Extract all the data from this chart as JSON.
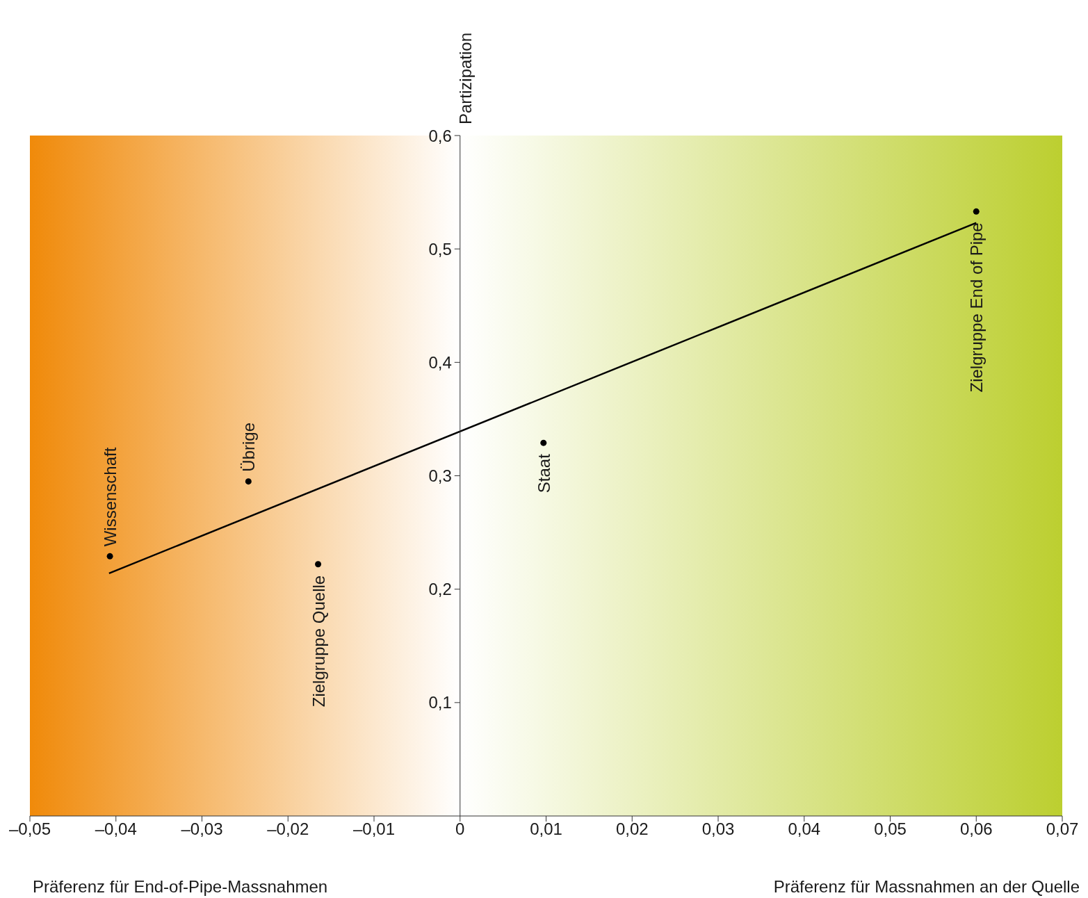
{
  "chart_data": {
    "type": "scatter",
    "ylabel": "Partizipation",
    "marker": "circle",
    "xlim": [
      -0.05,
      0.07
    ],
    "xticks": [
      {
        "value": -0.05,
        "label": "–0,05"
      },
      {
        "value": -0.04,
        "label": "–0,04"
      },
      {
        "value": -0.03,
        "label": "–0,03"
      },
      {
        "value": -0.02,
        "label": "–0,02"
      },
      {
        "value": -0.01,
        "label": "–0,01"
      },
      0,
      {
        "value": 0.01,
        "label": "0,01"
      },
      {
        "value": 0.02,
        "label": "0,02"
      },
      {
        "value": 0.03,
        "label": "0,03"
      },
      {
        "value": 0.04,
        "label": "0,04"
      },
      {
        "value": 0.05,
        "label": "0,05"
      },
      {
        "value": 0.06,
        "label": "0,06"
      },
      {
        "value": 0.07,
        "label": "0,07"
      }
    ],
    "ylim": [
      0,
      0.6
    ],
    "yticks": [
      {
        "value": 0.1,
        "label": "0,1"
      },
      {
        "value": 0.2,
        "label": "0,2"
      },
      {
        "value": 0.3,
        "label": "0,3"
      },
      {
        "value": 0.4,
        "label": "0,4"
      },
      {
        "value": 0.5,
        "label": "0,5"
      },
      {
        "value": 0.6,
        "label": "0,6"
      }
    ],
    "series": [
      {
        "type": "scatter",
        "color": "#000000",
        "x": [
          -0.0407,
          -0.0246,
          -0.0165,
          0.0097,
          0.06
        ],
        "values": [
          0.229,
          0.295,
          0.222,
          0.329,
          0.533
        ]
      },
      {
        "type": "line",
        "color": "#000000",
        "marker": "none",
        "x": [
          -0.0408,
          0.06
        ],
        "values": [
          0.214,
          0.523
        ]
      }
    ],
    "annotations": [
      "Präferenz für End-of-Pipe-Massnahmen",
      "Präferenz für Massnahmen an der Quelle",
      {
        "text": "Wissenschaft",
        "x": -0.0407,
        "y": 0.229
      },
      {
        "text": "Übrige",
        "x": -0.0246,
        "y": 0.295
      },
      {
        "text": "Zielgruppe Quelle",
        "x": -0.0165,
        "y": 0.222
      },
      {
        "text": "Staat",
        "x": 0.0097,
        "y": 0.329
      },
      {
        "text": "Zielgruppe End of Pipe",
        "x": 0.06,
        "y": 0.533
      }
    ]
  }
}
